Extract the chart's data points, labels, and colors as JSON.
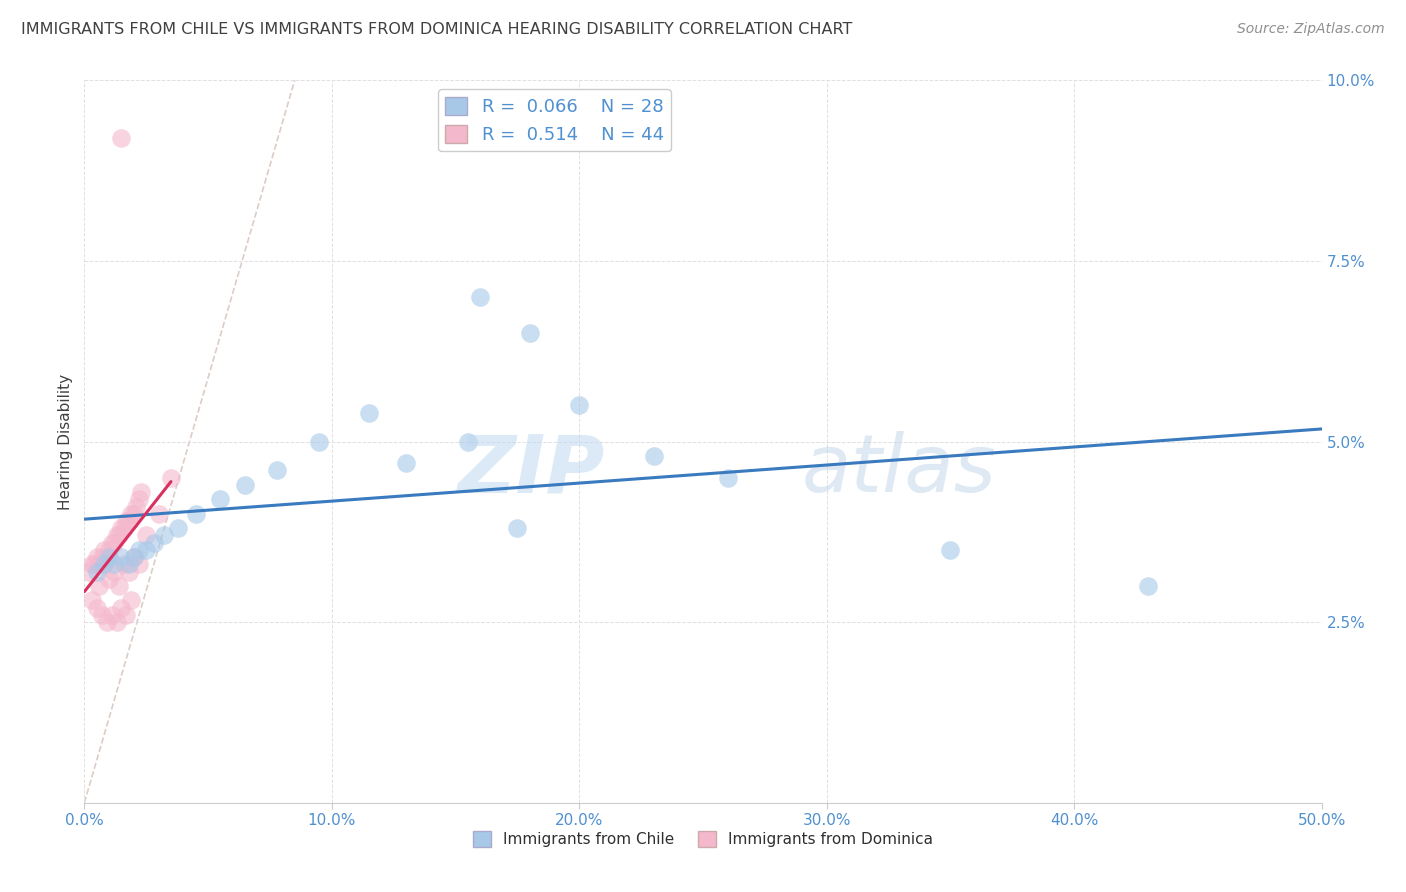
{
  "title": "IMMIGRANTS FROM CHILE VS IMMIGRANTS FROM DOMINICA HEARING DISABILITY CORRELATION CHART",
  "source": "Source: ZipAtlas.com",
  "ylabel": "Hearing Disability",
  "legend1_label": "Immigrants from Chile",
  "legend2_label": "Immigrants from Dominica",
  "r1": 0.066,
  "n1": 28,
  "r2": 0.514,
  "n2": 44,
  "xlim": [
    0.0,
    0.5
  ],
  "ylim": [
    0.0,
    0.1
  ],
  "xticks": [
    0.0,
    0.1,
    0.2,
    0.3,
    0.4,
    0.5
  ],
  "yticks": [
    0.0,
    0.025,
    0.05,
    0.075,
    0.1
  ],
  "xticklabels": [
    "0.0%",
    "10.0%",
    "20.0%",
    "30.0%",
    "40.0%",
    "50.0%"
  ],
  "yticklabels": [
    "",
    "2.5%",
    "5.0%",
    "7.5%",
    "10.0%"
  ],
  "color_chile": "#a8c8e8",
  "color_dominica": "#f4b8cc",
  "trendline_chile": "#3a7abf",
  "trendline_dominica": "#d93060",
  "ref_line_color": "#d0c8c0",
  "scatter_chile_x": [
    0.005,
    0.008,
    0.01,
    0.012,
    0.015,
    0.018,
    0.02,
    0.022,
    0.025,
    0.028,
    0.032,
    0.038,
    0.045,
    0.055,
    0.065,
    0.078,
    0.095,
    0.115,
    0.13,
    0.155,
    0.175,
    0.2,
    0.23,
    0.26,
    0.18,
    0.35,
    0.43,
    0.16
  ],
  "scatter_chile_y": [
    0.032,
    0.033,
    0.034,
    0.033,
    0.034,
    0.033,
    0.034,
    0.035,
    0.035,
    0.036,
    0.037,
    0.038,
    0.04,
    0.042,
    0.044,
    0.046,
    0.05,
    0.054,
    0.047,
    0.05,
    0.038,
    0.055,
    0.048,
    0.045,
    0.065,
    0.035,
    0.03,
    0.07
  ],
  "scatter_dominica_x": [
    0.002,
    0.003,
    0.004,
    0.005,
    0.006,
    0.007,
    0.008,
    0.009,
    0.01,
    0.011,
    0.012,
    0.013,
    0.014,
    0.015,
    0.016,
    0.017,
    0.018,
    0.019,
    0.02,
    0.021,
    0.022,
    0.023,
    0.003,
    0.005,
    0.007,
    0.009,
    0.011,
    0.013,
    0.015,
    0.017,
    0.019,
    0.006,
    0.01,
    0.014,
    0.018,
    0.022,
    0.008,
    0.012,
    0.016,
    0.02,
    0.025,
    0.03,
    0.035,
    0.015
  ],
  "scatter_dominica_y": [
    0.032,
    0.033,
    0.033,
    0.034,
    0.033,
    0.034,
    0.035,
    0.034,
    0.035,
    0.036,
    0.036,
    0.037,
    0.037,
    0.038,
    0.038,
    0.039,
    0.039,
    0.04,
    0.04,
    0.041,
    0.042,
    0.043,
    0.028,
    0.027,
    0.026,
    0.025,
    0.026,
    0.025,
    0.027,
    0.026,
    0.028,
    0.03,
    0.031,
    0.03,
    0.032,
    0.033,
    0.033,
    0.032,
    0.033,
    0.034,
    0.037,
    0.04,
    0.045,
    0.092
  ],
  "watermark_zip": "ZIP",
  "watermark_atlas": "atlas",
  "bg_color": "#ffffff",
  "grid_color": "#e0e0e0",
  "title_color": "#404040",
  "tick_color": "#5090d0",
  "source_color": "#909090"
}
